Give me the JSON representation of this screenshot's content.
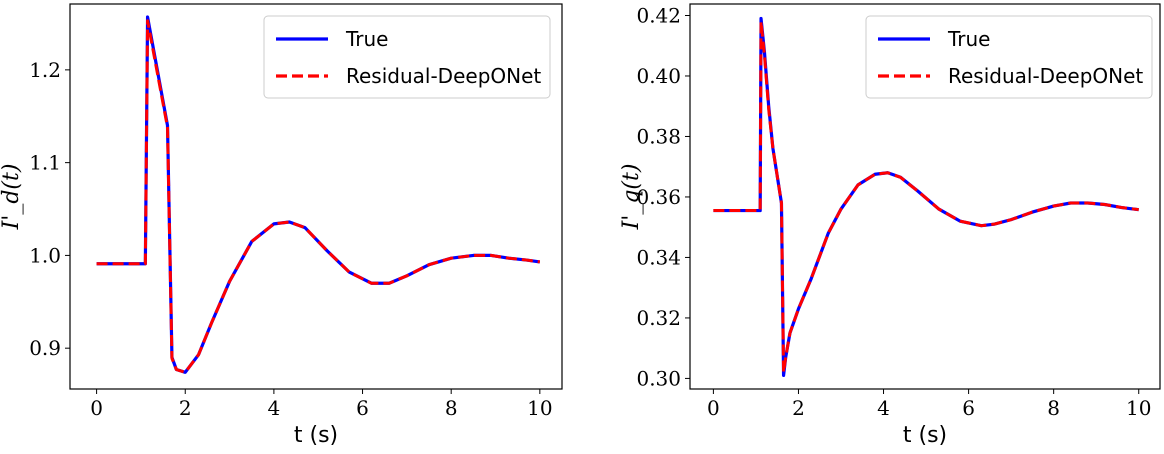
{
  "colors": {
    "true_line": "#0000ff",
    "pred_line": "#ff0000",
    "axes": "#000000",
    "legend_border": "#cccccc"
  },
  "chart_data": [
    {
      "type": "line",
      "xlabel": "t (s)",
      "ylabel": "I'_d(t)",
      "xlim": [
        -0.6,
        10.5
      ],
      "ylim": [
        0.856,
        1.271
      ],
      "xticks": [
        0,
        2,
        4,
        6,
        8,
        10
      ],
      "xtick_labels": [
        "0",
        "2",
        "4",
        "6",
        "8",
        "10"
      ],
      "yticks": [
        0.9,
        1.0,
        1.1,
        1.2
      ],
      "ytick_labels": [
        "0.9",
        "1.0",
        "1.1",
        "1.2"
      ],
      "grid": false,
      "legend_position": "top-right",
      "series": [
        {
          "name": "True",
          "style": "solid",
          "color": "#0000ff",
          "x": [
            0,
            1.0,
            1.1,
            1.15,
            1.6,
            1.7,
            1.8,
            2.0,
            2.3,
            2.6,
            3.0,
            3.5,
            4.0,
            4.35,
            4.7,
            5.2,
            5.7,
            6.2,
            6.6,
            7.0,
            7.5,
            8.0,
            8.5,
            8.9,
            9.3,
            9.7,
            10.0
          ],
          "y": [
            0.991,
            0.991,
            0.991,
            1.257,
            1.14,
            0.89,
            0.877,
            0.874,
            0.893,
            0.928,
            0.972,
            1.015,
            1.034,
            1.036,
            1.03,
            1.005,
            0.982,
            0.97,
            0.97,
            0.978,
            0.99,
            0.997,
            1.0,
            1.0,
            0.997,
            0.995,
            0.993
          ]
        },
        {
          "name": "Residual-DeepONet",
          "style": "dashed",
          "color": "#ff0000",
          "x": [
            0,
            1.0,
            1.1,
            1.15,
            1.6,
            1.7,
            1.8,
            2.0,
            2.3,
            2.6,
            3.0,
            3.5,
            4.0,
            4.35,
            4.7,
            5.2,
            5.7,
            6.2,
            6.6,
            7.0,
            7.5,
            8.0,
            8.5,
            8.9,
            9.3,
            9.7,
            10.0
          ],
          "y": [
            0.991,
            0.991,
            0.991,
            1.253,
            1.138,
            0.889,
            0.877,
            0.874,
            0.893,
            0.928,
            0.972,
            1.015,
            1.034,
            1.036,
            1.03,
            1.005,
            0.982,
            0.97,
            0.97,
            0.978,
            0.99,
            0.997,
            1.0,
            1.0,
            0.997,
            0.995,
            0.993
          ]
        }
      ]
    },
    {
      "type": "line",
      "xlabel": "t (s)",
      "ylabel": "I'_q(t)",
      "xlim": [
        -0.55,
        10.5
      ],
      "ylim": [
        0.2965,
        0.4238
      ],
      "xticks": [
        0,
        2,
        4,
        6,
        8,
        10
      ],
      "xtick_labels": [
        "0",
        "2",
        "4",
        "6",
        "8",
        "10"
      ],
      "yticks": [
        0.3,
        0.32,
        0.34,
        0.36,
        0.38,
        0.4,
        0.42
      ],
      "ytick_labels": [
        "0.30",
        "0.32",
        "0.34",
        "0.36",
        "0.38",
        "0.40",
        "0.42"
      ],
      "grid": false,
      "legend_position": "top-right",
      "series": [
        {
          "name": "True",
          "style": "solid",
          "color": "#0000ff",
          "x": [
            0,
            1.0,
            1.1,
            1.12,
            1.2,
            1.3,
            1.4,
            1.6,
            1.65,
            1.7,
            1.8,
            2.0,
            2.3,
            2.7,
            3.0,
            3.4,
            3.8,
            4.1,
            4.4,
            4.8,
            5.3,
            5.8,
            6.3,
            6.6,
            7.0,
            7.5,
            8.0,
            8.4,
            8.8,
            9.2,
            9.6,
            10.0
          ],
          "y": [
            0.3555,
            0.3555,
            0.3555,
            0.419,
            0.408,
            0.39,
            0.376,
            0.358,
            0.301,
            0.307,
            0.315,
            0.323,
            0.333,
            0.348,
            0.356,
            0.364,
            0.3675,
            0.368,
            0.3665,
            0.362,
            0.356,
            0.352,
            0.3505,
            0.351,
            0.3525,
            0.355,
            0.357,
            0.358,
            0.358,
            0.3575,
            0.3565,
            0.3558
          ]
        },
        {
          "name": "Residual-DeepONet",
          "style": "dashed",
          "color": "#ff0000",
          "x": [
            0,
            1.0,
            1.1,
            1.12,
            1.2,
            1.3,
            1.4,
            1.6,
            1.65,
            1.7,
            1.8,
            2.0,
            2.3,
            2.7,
            3.0,
            3.4,
            3.8,
            4.1,
            4.4,
            4.8,
            5.3,
            5.8,
            6.3,
            6.6,
            7.0,
            7.5,
            8.0,
            8.4,
            8.8,
            9.2,
            9.6,
            10.0
          ],
          "y": [
            0.3555,
            0.3555,
            0.3555,
            0.418,
            0.407,
            0.389,
            0.376,
            0.358,
            0.302,
            0.307,
            0.315,
            0.323,
            0.333,
            0.348,
            0.356,
            0.364,
            0.3675,
            0.368,
            0.3665,
            0.362,
            0.356,
            0.352,
            0.3505,
            0.351,
            0.3525,
            0.355,
            0.357,
            0.358,
            0.358,
            0.3575,
            0.3565,
            0.3558
          ]
        }
      ]
    }
  ]
}
